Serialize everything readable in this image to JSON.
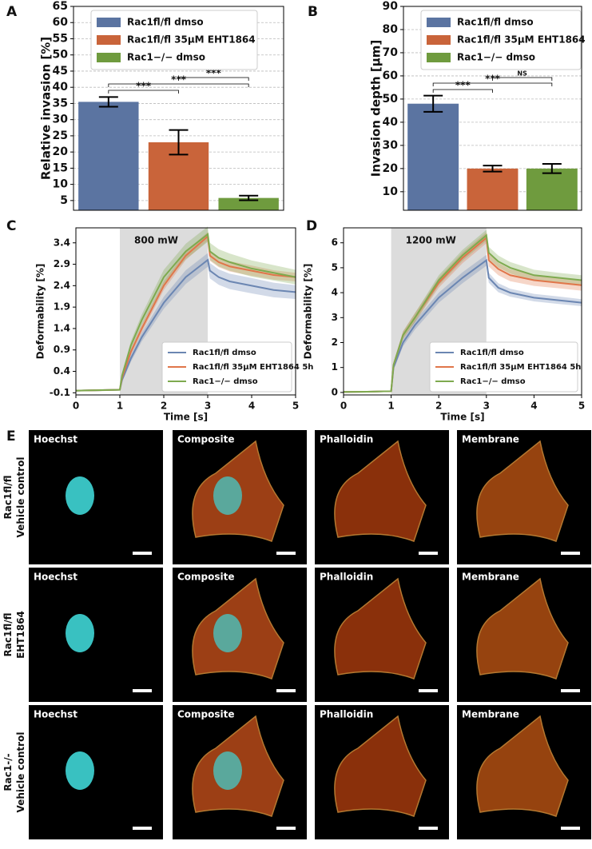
{
  "chart_data": [
    {
      "type": "bar",
      "label": "A",
      "ylabel": "Relative invasion [%]",
      "ylim": [
        2,
        65
      ],
      "yticks": [
        5,
        10,
        15,
        20,
        25,
        30,
        35,
        40,
        45,
        50,
        55,
        60,
        65
      ],
      "grid": true,
      "legend": "upper left",
      "series": [
        {
          "name": "Rac1fl/fl dmso",
          "color": "#5b74a1",
          "values": [
            35.5
          ],
          "errors": [
            1.5
          ]
        },
        {
          "name": "Rac1fl/fl 35μM EHT1864",
          "color": "#c9643a",
          "values": [
            23
          ],
          "errors": [
            3.8
          ]
        },
        {
          "name": "Rac1−/− dmso",
          "color": "#6f9b3e",
          "values": [
            5.8
          ],
          "errors": [
            0.7
          ]
        }
      ],
      "annotations": [
        "***",
        "***",
        "***"
      ]
    },
    {
      "type": "bar",
      "label": "B",
      "ylabel": "Invasion depth [μm]",
      "ylim": [
        2,
        90
      ],
      "yticks": [
        10,
        20,
        30,
        40,
        50,
        60,
        70,
        80,
        90
      ],
      "grid": true,
      "legend": "upper left",
      "series": [
        {
          "name": "Rac1fl/fl dmso",
          "color": "#5b74a1",
          "values": [
            48
          ],
          "errors": [
            3.5
          ]
        },
        {
          "name": "Rac1fl/fl 35μM EHT1864",
          "color": "#c9643a",
          "values": [
            20
          ],
          "errors": [
            1.3
          ]
        },
        {
          "name": "Rac1−/− dmso",
          "color": "#6f9b3e",
          "values": [
            20
          ],
          "errors": [
            2
          ]
        }
      ],
      "annotations": [
        "***",
        "***",
        "NS"
      ]
    },
    {
      "type": "line",
      "label": "C",
      "ylabel": "Deformability [%]",
      "xlabel": "Time [s]",
      "annotation": "800 mW",
      "shaded_x": [
        1,
        3
      ],
      "xlim": [
        0,
        5
      ],
      "xticks": [
        0,
        1,
        2,
        3,
        4,
        5
      ],
      "ylim": [
        -0.15,
        3.75
      ],
      "yticks": [
        -0.1,
        0.4,
        0.9,
        1.4,
        1.9,
        2.4,
        2.9,
        3.4
      ],
      "grid": false,
      "legend": "lower right",
      "x": [
        0,
        0.5,
        1,
        1.05,
        1.25,
        1.5,
        2,
        2.5,
        3,
        3.05,
        3.25,
        3.5,
        4,
        4.5,
        5
      ],
      "series": [
        {
          "name": "Rac1fl/fl dmso",
          "color": "#6b86b2",
          "values": [
            -0.05,
            -0.04,
            -0.03,
            0.2,
            0.7,
            1.2,
            2.0,
            2.6,
            3.0,
            2.75,
            2.6,
            2.5,
            2.4,
            2.3,
            2.25
          ],
          "errors": [
            0.02,
            0.02,
            0.02,
            0.05,
            0.08,
            0.1,
            0.14,
            0.16,
            0.16,
            0.18,
            0.18,
            0.18,
            0.18,
            0.17,
            0.16
          ]
        },
        {
          "name": "Rac1fl/fl 35μM EHT1864 5h",
          "color": "#e0764a",
          "values": [
            -0.05,
            -0.04,
            -0.03,
            0.25,
            0.85,
            1.4,
            2.4,
            3.1,
            3.55,
            3.1,
            2.95,
            2.85,
            2.75,
            2.65,
            2.6
          ],
          "errors": [
            0.02,
            0.02,
            0.02,
            0.05,
            0.07,
            0.09,
            0.1,
            0.1,
            0.1,
            0.12,
            0.12,
            0.12,
            0.12,
            0.11,
            0.1
          ]
        },
        {
          "name": "Rac1−/− dmso",
          "color": "#7eaa4f",
          "values": [
            -0.05,
            -0.04,
            -0.03,
            0.3,
            1.0,
            1.6,
            2.6,
            3.2,
            3.6,
            3.2,
            3.05,
            2.95,
            2.8,
            2.7,
            2.6
          ],
          "errors": [
            0.02,
            0.02,
            0.02,
            0.06,
            0.1,
            0.13,
            0.17,
            0.18,
            0.18,
            0.2,
            0.2,
            0.2,
            0.19,
            0.18,
            0.17
          ]
        }
      ]
    },
    {
      "type": "line",
      "label": "D",
      "ylabel": "Deformability [%]",
      "xlabel": "Time [s]",
      "annotation": "1200 mW",
      "shaded_x": [
        1,
        3
      ],
      "xlim": [
        0,
        5
      ],
      "xticks": [
        0,
        1,
        2,
        3,
        4,
        5
      ],
      "ylim": [
        -0.1,
        6.6
      ],
      "yticks": [
        0,
        1,
        2,
        3,
        4,
        5,
        6
      ],
      "grid": false,
      "legend": "lower right",
      "x": [
        0,
        0.5,
        1,
        1.05,
        1.25,
        1.5,
        2,
        2.5,
        3,
        3.05,
        3.25,
        3.5,
        4,
        4.5,
        5
      ],
      "series": [
        {
          "name": "Rac1fl/fl dmso",
          "color": "#6b86b2",
          "values": [
            0.02,
            0.03,
            0.05,
            1.0,
            2.0,
            2.7,
            3.8,
            4.6,
            5.3,
            4.6,
            4.2,
            4.0,
            3.8,
            3.7,
            3.6
          ],
          "errors": [
            0.02,
            0.02,
            0.02,
            0.1,
            0.15,
            0.18,
            0.2,
            0.22,
            0.22,
            0.2,
            0.18,
            0.16,
            0.15,
            0.15,
            0.14
          ]
        },
        {
          "name": "Rac1fl/fl 35μM EHT1864 5h",
          "color": "#e0764a",
          "values": [
            0.02,
            0.03,
            0.05,
            1.1,
            2.3,
            3.0,
            4.4,
            5.4,
            6.2,
            5.3,
            4.95,
            4.7,
            4.5,
            4.4,
            4.3
          ],
          "errors": [
            0.02,
            0.02,
            0.02,
            0.1,
            0.15,
            0.18,
            0.2,
            0.22,
            0.22,
            0.25,
            0.25,
            0.24,
            0.23,
            0.22,
            0.22
          ]
        },
        {
          "name": "Rac1−/− dmso",
          "color": "#7eaa4f",
          "values": [
            0.02,
            0.03,
            0.05,
            1.1,
            2.3,
            3.0,
            4.5,
            5.5,
            6.3,
            5.6,
            5.25,
            5.0,
            4.7,
            4.6,
            4.5
          ],
          "errors": [
            0.02,
            0.02,
            0.02,
            0.1,
            0.15,
            0.18,
            0.2,
            0.22,
            0.22,
            0.24,
            0.24,
            0.23,
            0.22,
            0.2,
            0.2
          ]
        }
      ]
    }
  ],
  "images": {
    "label": "E",
    "rows": [
      {
        "label": [
          "Rac1fl/fl",
          "Vehicle control"
        ],
        "tiles": [
          "Hoechst",
          "Composite",
          "Phalloidin",
          "Membrane"
        ]
      },
      {
        "label": [
          "Rac1fl/fl",
          "EHT1864"
        ],
        "tiles": [
          "Hoechst",
          "Composite",
          "Phalloidin",
          "Membrane"
        ]
      },
      {
        "label": [
          "Rac1-/-",
          "Vehicle control"
        ],
        "tiles": [
          "Hoechst",
          "Composite",
          "Phalloidin",
          "Membrane"
        ]
      }
    ]
  }
}
